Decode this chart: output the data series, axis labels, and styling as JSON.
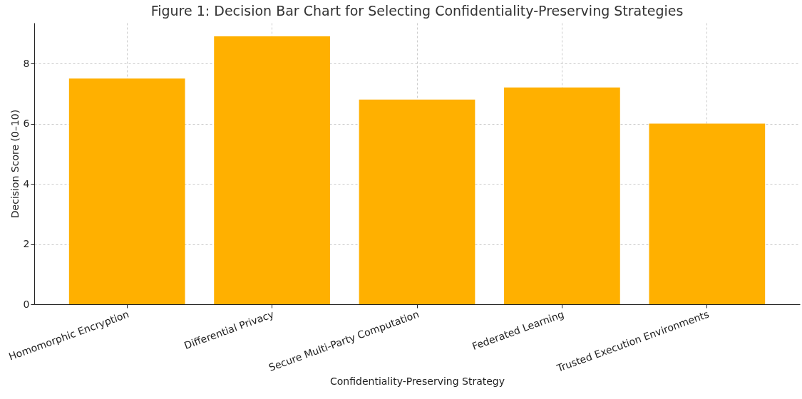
{
  "chart_data": {
    "type": "bar",
    "title": "Figure 1: Decision Bar Chart for Selecting Confidentiality-Preserving Strategies",
    "xlabel": "Confidentiality-Preserving Strategy",
    "ylabel": "Decision Score (0–10)",
    "categories": [
      "Homomorphic Encryption",
      "Differential Privacy",
      "Secure Multi-Party Computation",
      "Federated Learning",
      "Trusted Execution Environments"
    ],
    "values": [
      7.5,
      8.9,
      6.8,
      7.2,
      6.0
    ],
    "color": "#ffb000",
    "ylim": [
      0,
      9.35
    ],
    "yticks": [
      0,
      2,
      4,
      6,
      8
    ],
    "grid": true
  }
}
